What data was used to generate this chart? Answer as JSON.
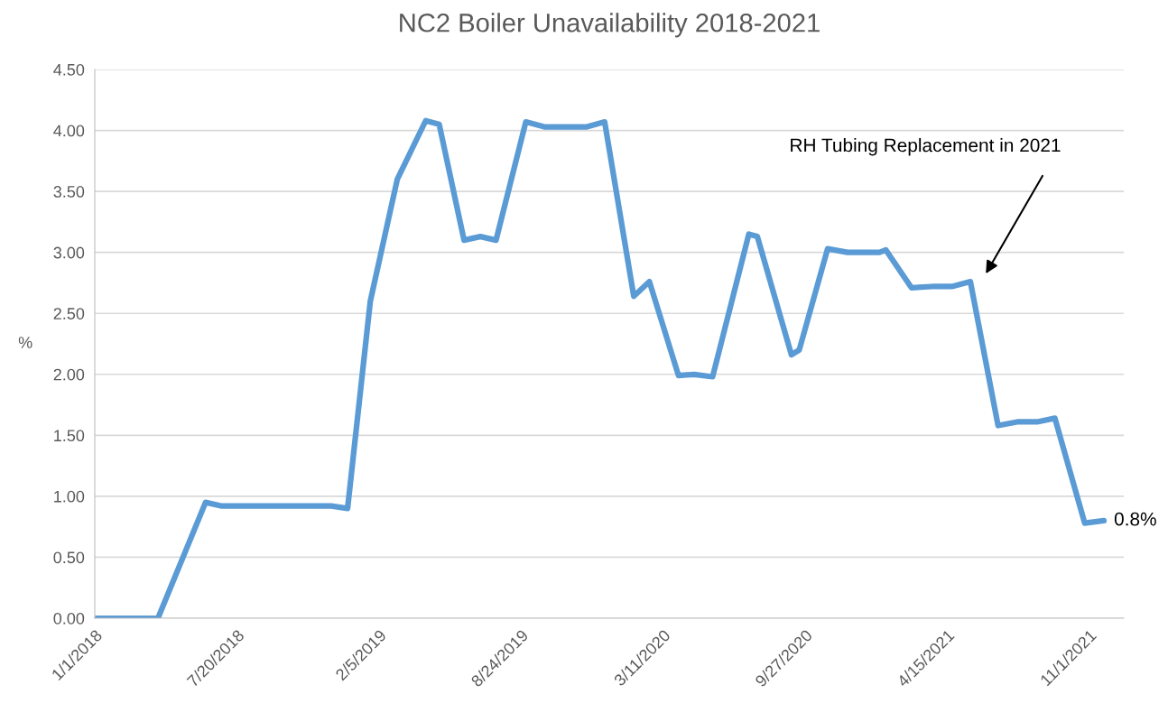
{
  "chart_data": {
    "type": "line",
    "title": "NC2 Boiler Unavailability 2018-2021",
    "ylabel": "%",
    "x": [
      "2018-01-01",
      "2018-03-31",
      "2018-06-06",
      "2018-06-29",
      "2018-11-30",
      "2018-12-23",
      "2019-01-24",
      "2019-03-03",
      "2019-04-12",
      "2019-05-01",
      "2019-06-05",
      "2019-06-28",
      "2019-07-20",
      "2019-08-31",
      "2019-09-26",
      "2019-11-25",
      "2019-12-20",
      "2020-01-30",
      "2020-02-21",
      "2020-04-02",
      "2020-04-24",
      "2020-05-20",
      "2020-07-10",
      "2020-07-22",
      "2020-09-08",
      "2020-09-19",
      "2020-10-29",
      "2020-11-26",
      "2021-01-10",
      "2021-01-19",
      "2021-02-24",
      "2021-03-25",
      "2021-04-22",
      "2021-05-18",
      "2021-06-26",
      "2021-07-23",
      "2021-08-20",
      "2021-09-14",
      "2021-10-26",
      "2021-11-22"
    ],
    "series": [
      {
        "color": "#5b9bd5",
        "values": [
          0,
          0,
          0.95,
          0.92,
          0.92,
          0.9,
          2.6,
          3.6,
          4.08,
          4.05,
          3.1,
          3.13,
          3.1,
          4.07,
          4.03,
          4.03,
          4.07,
          2.64,
          2.76,
          1.99,
          2.0,
          1.98,
          3.15,
          3.13,
          2.16,
          2.2,
          3.03,
          3.0,
          3.0,
          3.02,
          2.71,
          2.72,
          2.72,
          2.76,
          1.58,
          1.61,
          1.61,
          1.64,
          0.78,
          0.8
        ],
        "value_labels": [
          null,
          null,
          null,
          null,
          null,
          null,
          null,
          null,
          null,
          null,
          null,
          null,
          null,
          null,
          null,
          null,
          null,
          null,
          null,
          null,
          null,
          null,
          null,
          null,
          null,
          null,
          null,
          null,
          null,
          null,
          null,
          null,
          null,
          null,
          null,
          null,
          null,
          null,
          null,
          "0.8%"
        ]
      }
    ],
    "xlim": [
      "2018-01-01",
      "2021-12-20"
    ],
    "xticks": [
      {
        "value": "2018-01-01",
        "label": "1/1/2018"
      },
      {
        "value": "2018-07-20",
        "label": "7/20/2018"
      },
      {
        "value": "2019-02-05",
        "label": "2/5/2019"
      },
      {
        "value": "2019-08-24",
        "label": "8/24/2019"
      },
      {
        "value": "2020-03-11",
        "label": "3/11/2020"
      },
      {
        "value": "2020-09-27",
        "label": "9/27/2020"
      },
      {
        "value": "2021-04-15",
        "label": "4/15/2021"
      },
      {
        "value": "2021-11-01",
        "label": "11/1/2021"
      }
    ],
    "ylim": [
      0,
      4.5
    ],
    "yticks": [
      {
        "value": 0,
        "label": "0.00"
      },
      {
        "value": 0.5,
        "label": "0.50"
      },
      {
        "value": 1,
        "label": "1.00"
      },
      {
        "value": 1.5,
        "label": "1.50"
      },
      {
        "value": 2,
        "label": "2.00"
      },
      {
        "value": 2.5,
        "label": "2.50"
      },
      {
        "value": 3,
        "label": "3.00"
      },
      {
        "value": 3.5,
        "label": "3.50"
      },
      {
        "value": 4,
        "label": "4.00"
      },
      {
        "value": 4.5,
        "label": "4.50"
      }
    ],
    "annotations": [
      "RH Tubing Replacement in 2021"
    ],
    "grid": "y",
    "legend": false,
    "marker": "none",
    "line_style": "solid"
  }
}
